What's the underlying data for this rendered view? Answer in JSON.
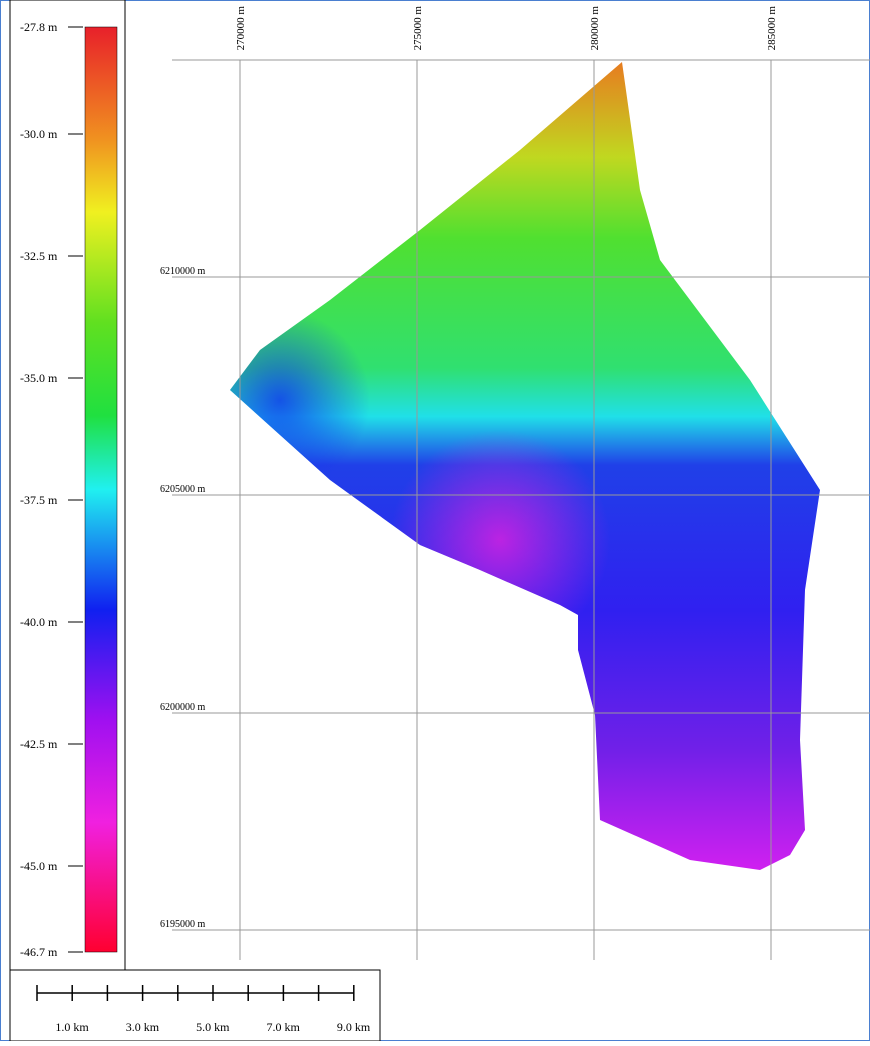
{
  "legend": {
    "labels": [
      "-27.8 m",
      "-30.0 m",
      "-32.5 m",
      "-35.0 m",
      "-37.5 m",
      "-40.0 m",
      "-42.5 m",
      "-45.0 m",
      "-46.7 m"
    ]
  },
  "grid": {
    "x_labels": [
      "270000 m",
      "275000 m",
      "280000 m",
      "285000 m"
    ],
    "y_labels": [
      "6210000 m",
      "6205000 m",
      "6200000 m",
      "6195000 m"
    ]
  },
  "scale_bar": {
    "labels": [
      "1.0 km",
      "3.0 km",
      "5.0 km",
      "7.0 km",
      "9.0 km"
    ]
  }
}
